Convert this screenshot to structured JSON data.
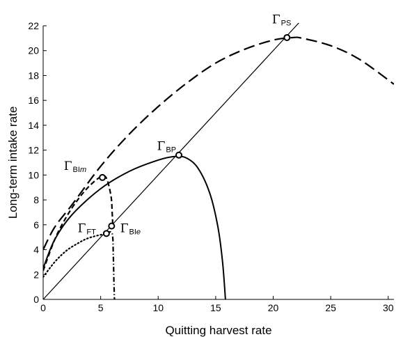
{
  "chart_data": {
    "type": "line",
    "title": "",
    "xlabel": "Quitting harvest rate",
    "ylabel": "Long-term intake rate",
    "xlim": [
      0,
      30.5
    ],
    "ylim": [
      0,
      22
    ],
    "xticks": [
      0,
      5,
      10,
      15,
      20,
      25,
      30
    ],
    "yticks": [
      0,
      2,
      4,
      6,
      8,
      10,
      12,
      14,
      16,
      18,
      20,
      22
    ],
    "grid": false,
    "legend": "none",
    "series": [
      {
        "style": "solid",
        "description_key": "diagonal",
        "points": [
          [
            0,
            0
          ],
          [
            22.8,
            22.8
          ]
        ]
      },
      {
        "style": "dashed-long",
        "points": [
          [
            0,
            4
          ],
          [
            1,
            5.8
          ],
          [
            2.5,
            7.6
          ],
          [
            5,
            10.7
          ],
          [
            7.5,
            13.3
          ],
          [
            10,
            15.5
          ],
          [
            12.5,
            17.4
          ],
          [
            15,
            19
          ],
          [
            17.5,
            20.1
          ],
          [
            20,
            20.85
          ],
          [
            21.7,
            21.05
          ],
          [
            22.5,
            21
          ],
          [
            25,
            20.4
          ],
          [
            27.5,
            19.3
          ],
          [
            30.5,
            17.3
          ]
        ]
      },
      {
        "style": "solid",
        "points": [
          [
            0,
            2.5
          ],
          [
            1,
            4.8
          ],
          [
            2.5,
            6.8
          ],
          [
            5,
            8.9
          ],
          [
            7.5,
            10.3
          ],
          [
            10,
            11.2
          ],
          [
            11.5,
            11.5
          ],
          [
            12.5,
            11.35
          ],
          [
            13.5,
            10.5
          ],
          [
            14.5,
            8.5
          ],
          [
            15.2,
            5.8
          ],
          [
            15.6,
            3
          ],
          [
            15.85,
            0
          ]
        ]
      },
      {
        "style": "dashed",
        "points": [
          [
            0,
            2.3
          ],
          [
            1,
            4.8
          ],
          [
            2,
            6.6
          ],
          [
            3,
            8.0
          ],
          [
            4,
            9.1
          ],
          [
            5.0,
            9.85
          ],
          [
            5.5,
            9.75
          ],
          [
            5.9,
            8.3
          ],
          [
            6.0,
            7.0
          ],
          [
            6.05,
            6.0
          ]
        ]
      },
      {
        "style": "dotted",
        "points": [
          [
            0,
            1.8
          ],
          [
            1,
            3.0
          ],
          [
            2,
            3.9
          ],
          [
            3,
            4.5
          ],
          [
            4,
            4.95
          ],
          [
            5.5,
            5.3
          ]
        ]
      },
      {
        "style": "dash-dot",
        "points": [
          [
            5.5,
            5.3
          ],
          [
            6.0,
            5.3
          ],
          [
            6.1,
            3.5
          ],
          [
            6.15,
            1.5
          ],
          [
            6.2,
            0
          ]
        ]
      }
    ],
    "markers": [
      {
        "label": "Γ",
        "sub": "PS",
        "x": 21.2,
        "y": 21.05,
        "label_pos": [
          19.9,
          22.2
        ]
      },
      {
        "label": "Γ",
        "sub": "BP",
        "x": 11.8,
        "y": 11.6,
        "label_pos": [
          9.9,
          12.0
        ]
      },
      {
        "label": "Γ",
        "sub": "BIm",
        "x": 5.15,
        "y": 9.8,
        "label_pos": [
          1.8,
          10.4
        ]
      },
      {
        "label": "Γ",
        "sub": "FT",
        "x": 5.5,
        "y": 5.3,
        "label_pos": [
          3.0,
          5.4
        ]
      },
      {
        "label": "Γ",
        "sub": "BIe",
        "x": 5.95,
        "y": 5.9,
        "label_pos": [
          6.7,
          5.4
        ]
      }
    ]
  }
}
